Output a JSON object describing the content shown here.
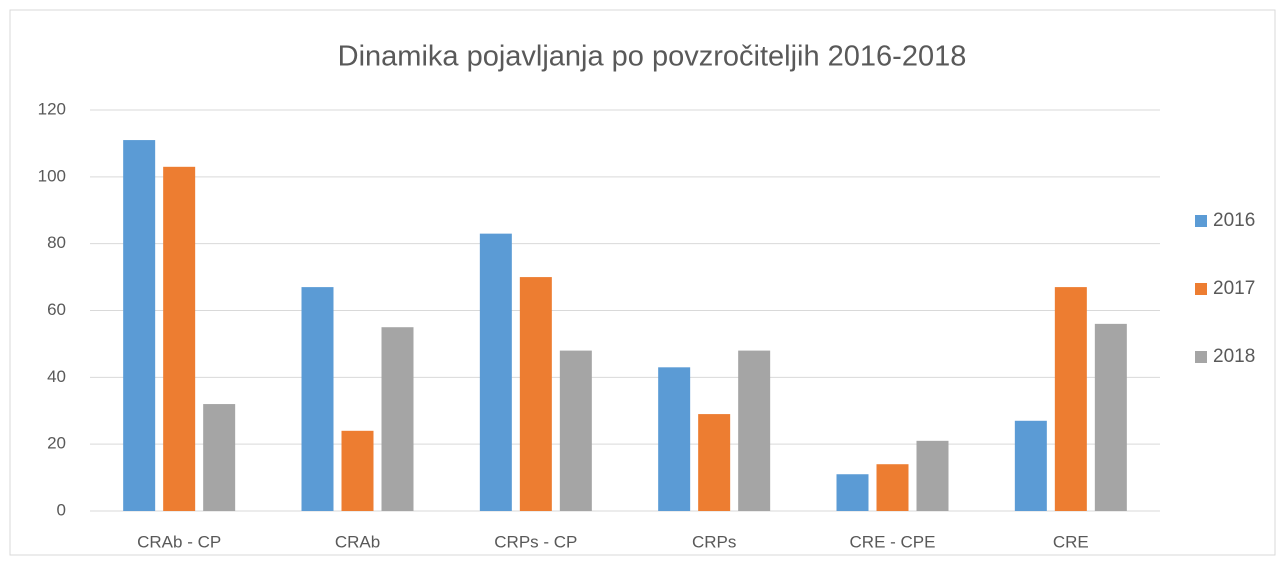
{
  "chart_data": {
    "type": "bar",
    "title": "Dinamika pojavljanja po povzročiteljih 2016-2018",
    "categories": [
      "CRAb - CP",
      "CRAb",
      "CRPs - CP",
      "CRPs",
      "CRE - CPE",
      "CRE"
    ],
    "series": [
      {
        "name": "2016",
        "color": "#5b9bd5",
        "values": [
          111,
          67,
          83,
          43,
          11,
          27
        ]
      },
      {
        "name": "2017",
        "color": "#ed7d31",
        "values": [
          103,
          24,
          70,
          29,
          14,
          67
        ]
      },
      {
        "name": "2018",
        "color": "#a5a5a5",
        "values": [
          32,
          55,
          48,
          48,
          21,
          56
        ]
      }
    ],
    "ylim": [
      0,
      120
    ],
    "yticks": [
      0,
      20,
      40,
      60,
      80,
      100,
      120
    ],
    "grid": true,
    "legend": "right"
  }
}
